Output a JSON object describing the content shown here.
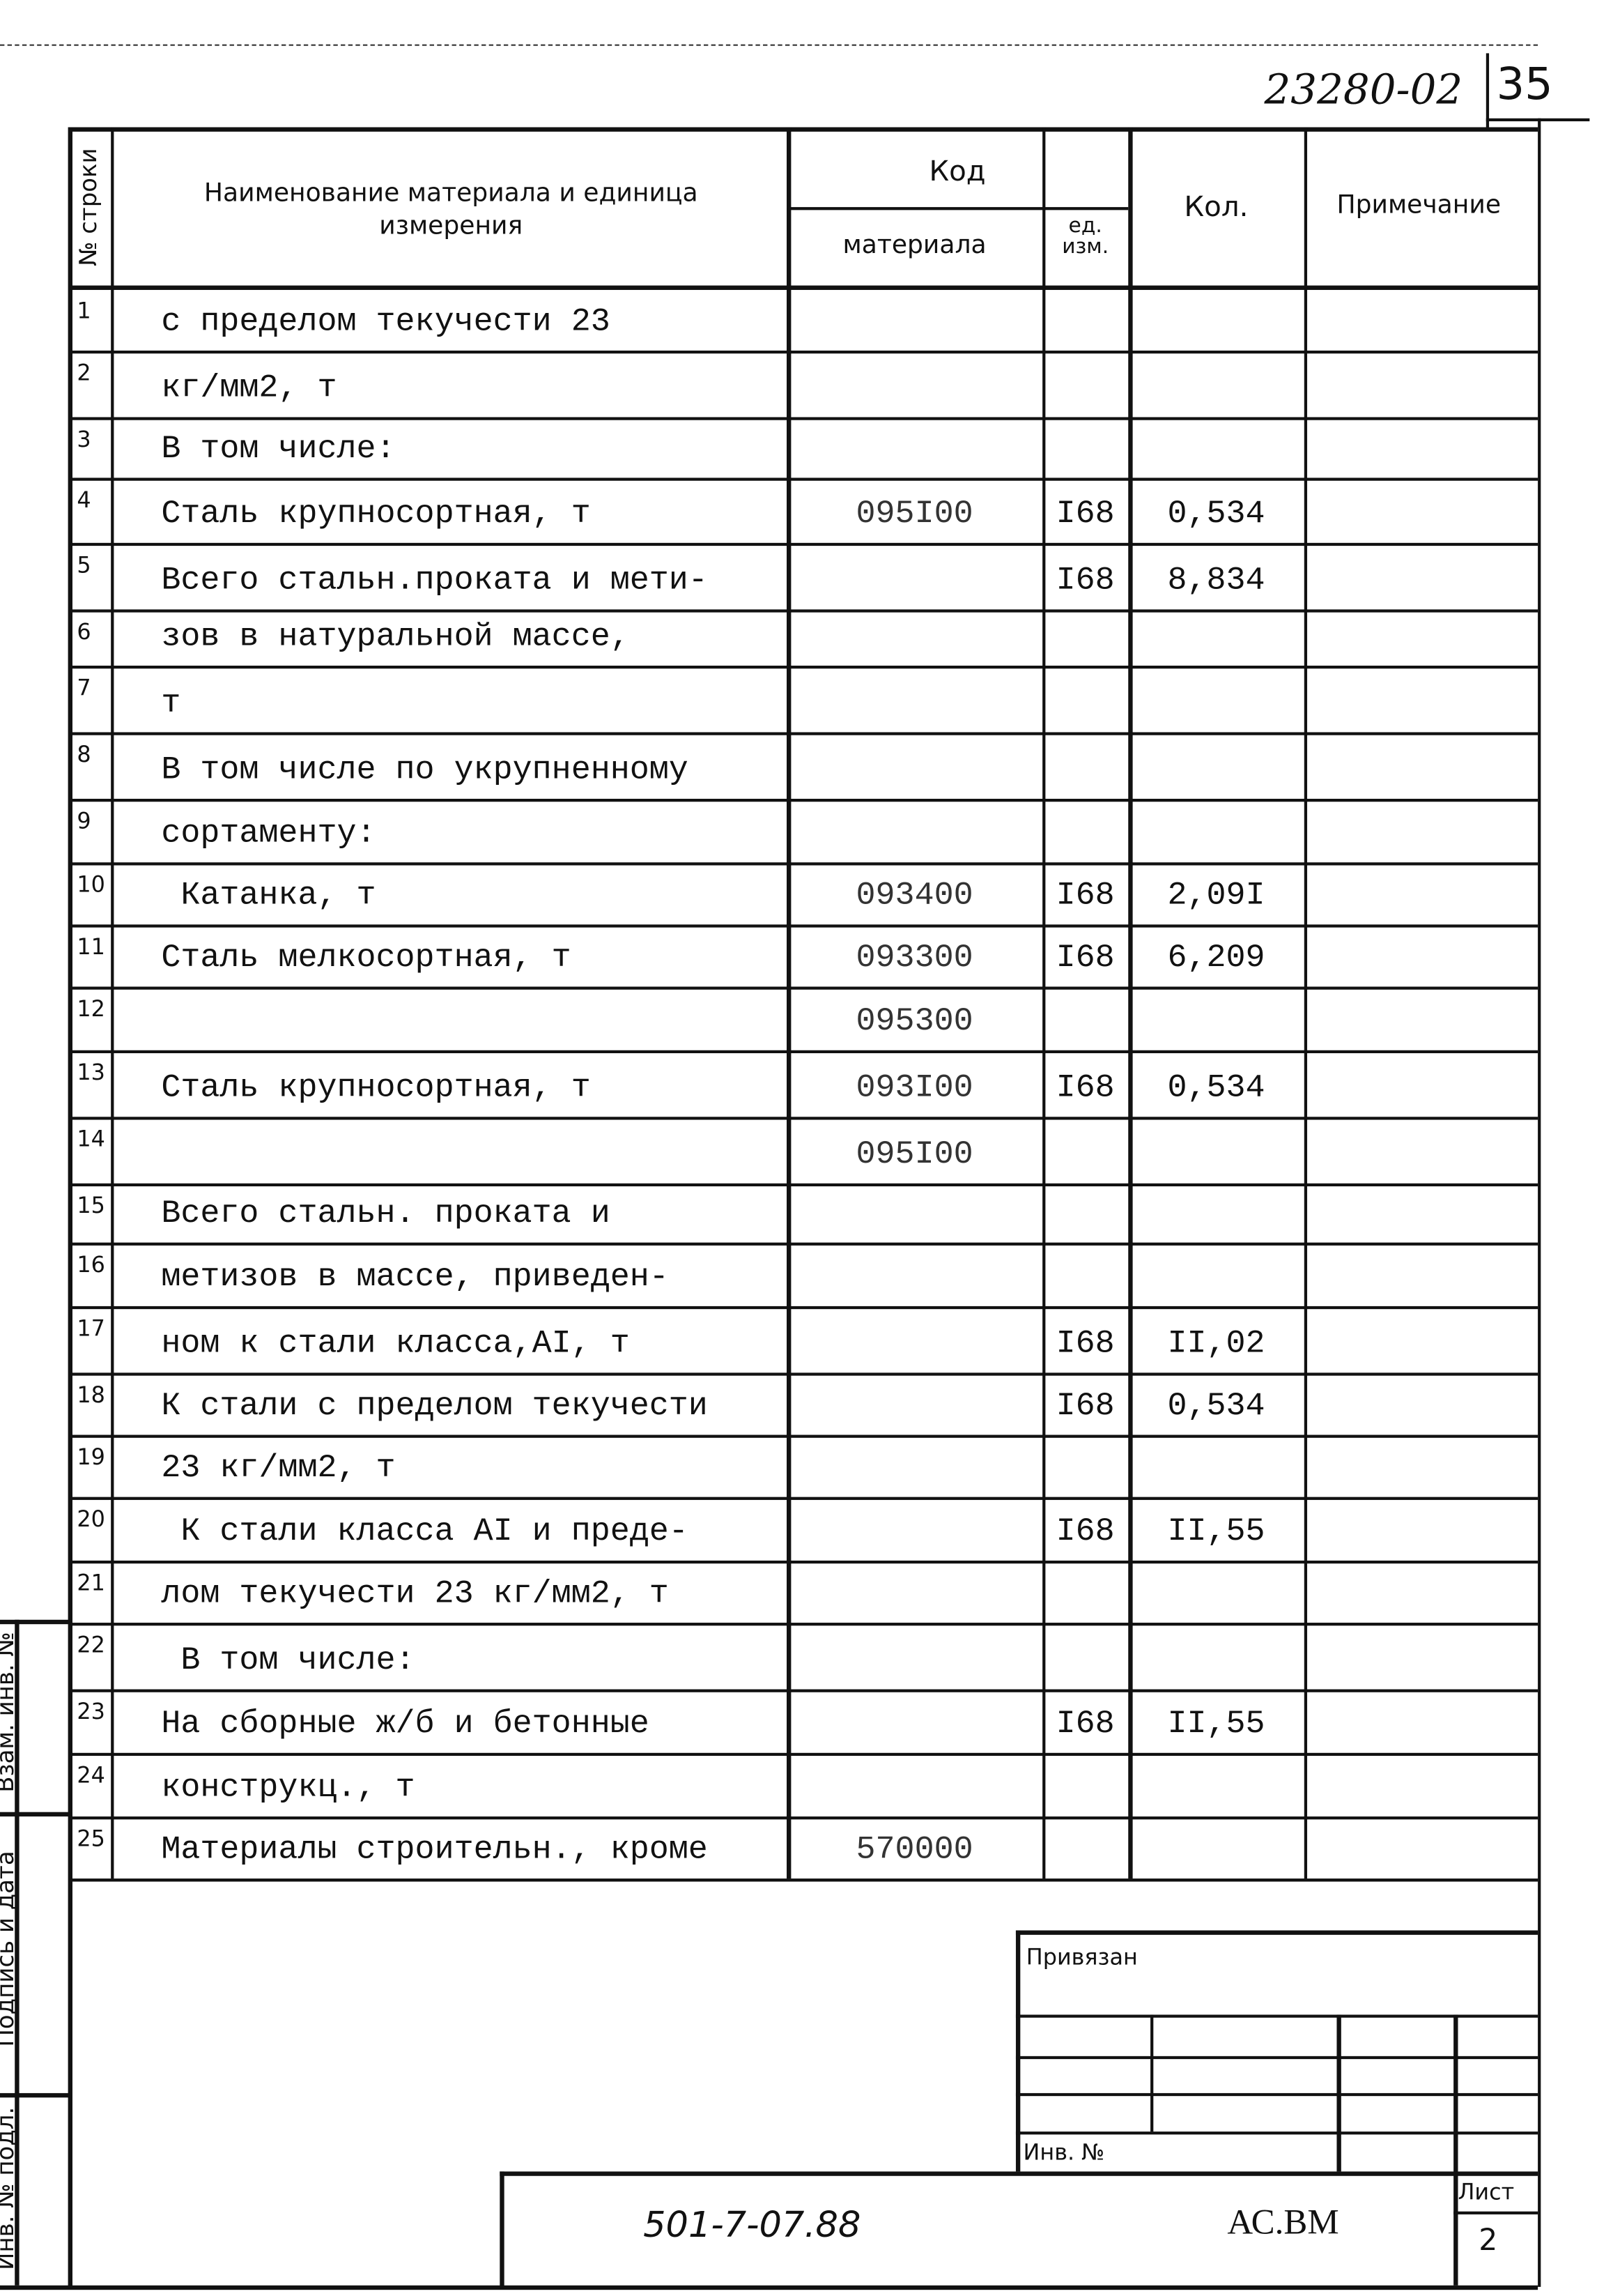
{
  "sheet": {
    "doc_code": "23280-02",
    "page_number": "35"
  },
  "header": {
    "row_no": "№ строки",
    "name": "Наименование материала  и единица измерения",
    "code": "Код",
    "code_material": "материала",
    "code_unit": "ед. изм.",
    "qty": "Кол.",
    "note": "Примечание"
  },
  "rows": [
    {
      "n": "1",
      "name": "с пределом текучести 23",
      "code": "",
      "unit": "",
      "qty": ""
    },
    {
      "n": "2",
      "name": "кг/мм2, т",
      "code": "",
      "unit": "",
      "qty": ""
    },
    {
      "n": "3",
      "name": "В том числе:",
      "code": "",
      "unit": "",
      "qty": ""
    },
    {
      "n": "4",
      "name": "Сталь крупносортная, т",
      "code": "095I00",
      "unit": "I68",
      "qty": "0,534"
    },
    {
      "n": "5",
      "name": "Всего стальн.проката и мети-",
      "code": "",
      "unit": "I68",
      "qty": "8,834"
    },
    {
      "n": "6",
      "name": "зов в натуральной массе,",
      "code": "",
      "unit": "",
      "qty": ""
    },
    {
      "n": "7",
      "name": "т",
      "code": "",
      "unit": "",
      "qty": ""
    },
    {
      "n": "8",
      "name": "В том числе по укрупненному",
      "code": "",
      "unit": "",
      "qty": ""
    },
    {
      "n": "9",
      "name": "сортаменту:",
      "code": "",
      "unit": "",
      "qty": ""
    },
    {
      "n": "10",
      "name": " Катанка, т",
      "code": "093400",
      "unit": "I68",
      "qty": "2,09I"
    },
    {
      "n": "11",
      "name": "Сталь мелкосортная, т",
      "code": "093300",
      "unit": "I68",
      "qty": "6,209"
    },
    {
      "n": "12",
      "name": "",
      "code": "095300",
      "unit": "",
      "qty": ""
    },
    {
      "n": "13",
      "name": "Сталь крупносортная, т",
      "code": "093I00",
      "unit": "I68",
      "qty": "0,534"
    },
    {
      "n": "14",
      "name": "",
      "code": "095I00",
      "unit": "",
      "qty": ""
    },
    {
      "n": "15",
      "name": "Всего стальн. проката и",
      "code": "",
      "unit": "",
      "qty": ""
    },
    {
      "n": "16",
      "name": "метизов в массе, приведен-",
      "code": "",
      "unit": "",
      "qty": ""
    },
    {
      "n": "17",
      "name": "ном к стали класса,АI, т",
      "code": "",
      "unit": "I68",
      "qty": "II,02"
    },
    {
      "n": "18",
      "name": "К стали с пределом текучести",
      "code": "",
      "unit": "I68",
      "qty": "0,534"
    },
    {
      "n": "19",
      "name": "23 кг/мм2, т",
      "code": "",
      "unit": "",
      "qty": ""
    },
    {
      "n": "20",
      "name": " К стали класса АI и преде-",
      "code": "",
      "unit": "I68",
      "qty": "II,55"
    },
    {
      "n": "21",
      "name": "лом текучести 23 кг/мм2, т",
      "code": "",
      "unit": "",
      "qty": ""
    },
    {
      "n": "22",
      "name": " В том числе:",
      "code": "",
      "unit": "",
      "qty": ""
    },
    {
      "n": "23",
      "name": "На сборные ж/б и бетонные",
      "code": "",
      "unit": "I68",
      "qty": "II,55"
    },
    {
      "n": "24",
      "name": "конструкц., т",
      "code": "",
      "unit": "",
      "qty": ""
    },
    {
      "n": "25",
      "name": "Материалы строительн., кроме",
      "code": "570000",
      "unit": "",
      "qty": ""
    }
  ],
  "side_stamp": {
    "replaced_inv": "Взам. инв. №",
    "signature_date": "Подпись и дата",
    "inv_original": "Инв. № подл."
  },
  "title_block": {
    "linked": "Привязан",
    "inv_no": "Инв. №",
    "project_code": "501-7-07.88",
    "doc_mark": "АС.ВМ",
    "sheet_label": "Лист",
    "sheet_value": "2"
  }
}
